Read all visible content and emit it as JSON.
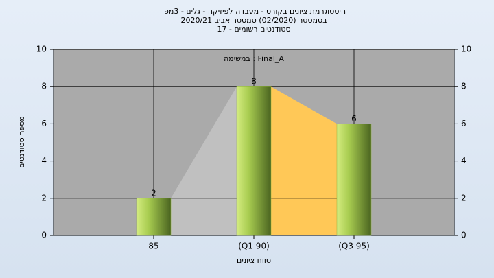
{
  "chart_data": {
    "type": "bar",
    "title": "היסטוגרמת ציונים בקורס - מעבדה לפיזיקה - גלים - 3מפ'",
    "subtitle": "בסמסטר (02/2020) סמסטר אביב 2020/21",
    "subtitle2": "סטודנטים רשומים - 17",
    "annotation": "Final_A : במשימה",
    "x_label": "טווח ציונים",
    "y_label": "מספר סטודנטים",
    "categories": [
      "85",
      "(Q1 90)",
      "(Q3 95)"
    ],
    "values": [
      2,
      8,
      6
    ],
    "color": "#8db33a",
    "area_colors": [
      "#c0c0c0",
      "#ffc857"
    ],
    "ylim": [
      0,
      10
    ],
    "yticks": [
      0,
      2,
      4,
      6,
      8,
      10
    ],
    "y2lim": [
      0,
      10
    ],
    "y2ticks": [
      0,
      2,
      4,
      6,
      8,
      10
    ],
    "grid": true
  }
}
